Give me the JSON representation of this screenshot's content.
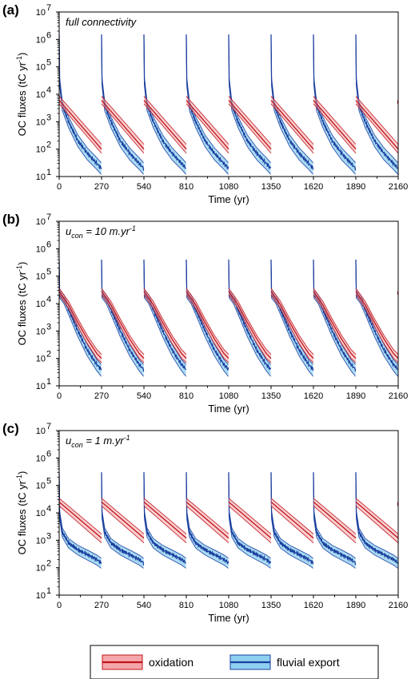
{
  "figure": {
    "legend": {
      "items": [
        {
          "label": "oxidation",
          "line_color": "#c0141b",
          "band_color": "#f4a7aa"
        },
        {
          "label": "fluvial export",
          "line_color": "#1a3f9e",
          "band_color": "#8fd0f1"
        }
      ]
    }
  },
  "chart_data": [
    {
      "type": "line",
      "panel_label": "(a)",
      "annotation": "full connectivity",
      "annotation_parts": {
        "prefix": "",
        "sub": "",
        "suffix": "",
        "sup": ""
      },
      "xlabel": "Time (yr)",
      "ylabel": "OC fluxes (tC yr⁻¹)",
      "ylabel_parts": {
        "main": "OC fluxes (tC yr",
        "sup": "-1",
        "tail": ")"
      },
      "x_ticks": [
        0,
        270,
        540,
        810,
        1080,
        1350,
        1620,
        1890,
        2160
      ],
      "y_ticks": [
        {
          "base": "10",
          "exp": "1",
          "value": 10
        },
        {
          "base": "10",
          "exp": "2",
          "value": 100
        },
        {
          "base": "10",
          "exp": "3",
          "value": 1000
        },
        {
          "base": "10",
          "exp": "4",
          "value": 10000
        },
        {
          "base": "10",
          "exp": "5",
          "value": 100000
        },
        {
          "base": "10",
          "exp": "6",
          "value": 1000000
        },
        {
          "base": "10",
          "exp": "7",
          "value": 10000000
        }
      ],
      "xlim": [
        0,
        2160
      ],
      "ylim": [
        10,
        10000000
      ],
      "y_scale": "log",
      "cycle_period": 270,
      "series": [
        {
          "name": "oxidation",
          "color": "#c0141b",
          "band_color": "#f4a7aa",
          "cycle": {
            "x": [
              0,
              270
            ],
            "y": [
              6000,
              100
            ],
            "band_low": [
              4500,
              70
            ],
            "band_high": [
              8500,
              150
            ]
          }
        },
        {
          "name": "fluvial export",
          "color": "#1a3f9e",
          "band_color": "#8fd0f1",
          "cycle": {
            "x": [
              0,
              3,
              20,
              60,
              120,
              180,
              240,
              268
            ],
            "y": [
              1500000,
              30000,
              4000,
              1000,
              200,
              70,
              30,
              20
            ],
            "band_low": [
              1500000,
              20000,
              2500,
              600,
              120,
              40,
              18,
              12
            ],
            "band_high": [
              1500000,
              40000,
              5500,
              1500,
              320,
              110,
              48,
              32
            ]
          }
        }
      ]
    },
    {
      "type": "line",
      "panel_label": "(b)",
      "annotation": "u_con = 10 m.yr^-1",
      "annotation_parts": {
        "prefix": "u",
        "sub": "con",
        "suffix": " = 10 m.yr",
        "sup": "-1"
      },
      "xlabel": "Time (yr)",
      "ylabel": "OC fluxes (tC yr⁻¹)",
      "ylabel_parts": {
        "main": "OC fluxes (tC yr",
        "sup": "-1",
        "tail": ")"
      },
      "x_ticks": [
        0,
        270,
        540,
        810,
        1080,
        1350,
        1620,
        1890,
        2160
      ],
      "y_ticks": [
        {
          "base": "10",
          "exp": "1",
          "value": 10
        },
        {
          "base": "10",
          "exp": "2",
          "value": 100
        },
        {
          "base": "10",
          "exp": "3",
          "value": 1000
        },
        {
          "base": "10",
          "exp": "4",
          "value": 10000
        },
        {
          "base": "10",
          "exp": "5",
          "value": 100000
        },
        {
          "base": "10",
          "exp": "6",
          "value": 1000000
        },
        {
          "base": "10",
          "exp": "7",
          "value": 10000000
        }
      ],
      "xlim": [
        0,
        2160
      ],
      "ylim": [
        10,
        10000000
      ],
      "y_scale": "log",
      "cycle_period": 270,
      "series": [
        {
          "name": "oxidation",
          "color": "#c0141b",
          "band_color": "#f4a7aa",
          "cycle": {
            "x": [
              0,
              60,
              120,
              180,
              240,
              270
            ],
            "y": [
              28000,
              9000,
              2000,
              500,
              150,
              100
            ],
            "band_low": [
              21000,
              6500,
              1400,
              340,
              100,
              70
            ],
            "band_high": [
              36000,
              12000,
              2700,
              680,
              210,
              140
            ]
          }
        },
        {
          "name": "fluvial export",
          "color": "#1a3f9e",
          "band_color": "#8fd0f1",
          "cycle": {
            "x": [
              0,
              3,
              30,
              60,
              120,
              180,
              240,
              268
            ],
            "y": [
              400000,
              22000,
              15000,
              6000,
              1000,
              200,
              60,
              40
            ],
            "band_low": [
              400000,
              16000,
              10000,
              4000,
              600,
              120,
              35,
              22
            ],
            "band_high": [
              400000,
              30000,
              21000,
              8500,
              1500,
              320,
              90,
              60
            ]
          }
        }
      ]
    },
    {
      "type": "line",
      "panel_label": "(c)",
      "annotation": "u_con = 1 m.yr^-1",
      "annotation_parts": {
        "prefix": "u",
        "sub": "con",
        "suffix": " = 1 m.yr",
        "sup": "-1"
      },
      "xlabel": "Time (yr)",
      "ylabel": "OC fluxes (tC yr⁻¹)",
      "ylabel_parts": {
        "main": "OC fluxes (tC yr",
        "sup": "-1",
        "tail": ")"
      },
      "x_ticks": [
        0,
        270,
        540,
        810,
        1080,
        1350,
        1620,
        1890,
        2160
      ],
      "y_ticks": [
        {
          "base": "10",
          "exp": "1",
          "value": 10
        },
        {
          "base": "10",
          "exp": "2",
          "value": 100
        },
        {
          "base": "10",
          "exp": "3",
          "value": 1000
        },
        {
          "base": "10",
          "exp": "4",
          "value": 10000
        },
        {
          "base": "10",
          "exp": "5",
          "value": 100000
        },
        {
          "base": "10",
          "exp": "6",
          "value": 1000000
        },
        {
          "base": "10",
          "exp": "7",
          "value": 10000000
        }
      ],
      "xlim": [
        0,
        2160
      ],
      "ylim": [
        10,
        10000000
      ],
      "y_scale": "log",
      "cycle_period": 270,
      "series": [
        {
          "name": "oxidation",
          "color": "#c0141b",
          "band_color": "#f4a7aa",
          "cycle": {
            "x": [
              0,
              270
            ],
            "y": [
              25000,
              1200
            ],
            "band_low": [
              18000,
              800
            ],
            "band_high": [
              34000,
              1700
            ]
          }
        },
        {
          "name": "fluvial export",
          "color": "#1a3f9e",
          "band_color": "#8fd0f1",
          "cycle": {
            "x": [
              0,
              3,
              20,
              60,
              120,
              180,
              240,
              268
            ],
            "y": [
              300000,
              9000,
              2000,
              800,
              450,
              300,
              200,
              150
            ],
            "band_low": [
              300000,
              6000,
              1300,
              520,
              290,
              190,
              125,
              95
            ],
            "band_high": [
              300000,
              12000,
              2800,
              1150,
              650,
              440,
              290,
              220
            ]
          }
        }
      ]
    }
  ]
}
